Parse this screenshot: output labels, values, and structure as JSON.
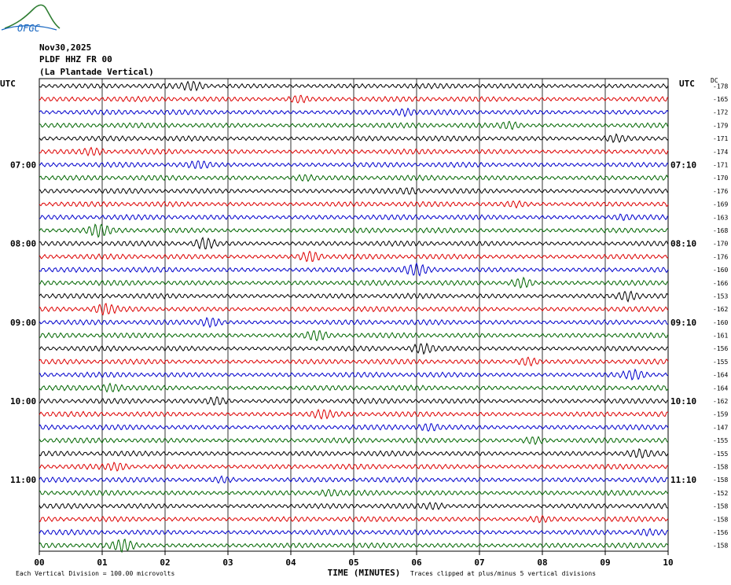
{
  "logo": {
    "text": "OFGC"
  },
  "header": {
    "date": "Nov30,2025",
    "channel": "PLDF HHZ FR 00",
    "station": "(La Plantade Vertical)"
  },
  "chart_data": {
    "type": "line",
    "left_axis_label": "UTC",
    "right_axis_label": "UTC",
    "right_col_label": "DC",
    "xlabel": "TIME (MINUTES)",
    "x_ticks": [
      "00",
      "01",
      "02",
      "03",
      "04",
      "05",
      "06",
      "07",
      "08",
      "09",
      "10"
    ],
    "xlim": [
      0,
      10
    ],
    "left_hour_labels": [
      {
        "row": 6,
        "label": "07:00"
      },
      {
        "row": 12,
        "label": "08:00"
      },
      {
        "row": 18,
        "label": "09:00"
      },
      {
        "row": 24,
        "label": "10:00"
      },
      {
        "row": 30,
        "label": "11:00"
      }
    ],
    "right_hour_labels": [
      {
        "row": 6,
        "label": "07:10"
      },
      {
        "row": 12,
        "label": "08:10"
      },
      {
        "row": 18,
        "label": "09:10"
      },
      {
        "row": 24,
        "label": "10:10"
      },
      {
        "row": 30,
        "label": "11:10"
      }
    ],
    "trace_colors": [
      "#000000",
      "#dd0000",
      "#0000cc",
      "#006600"
    ],
    "dc_offsets": [
      -178,
      -165,
      -172,
      -179,
      -171,
      -174,
      -171,
      -170,
      -176,
      -169,
      -163,
      -168,
      -170,
      -176,
      -160,
      -166,
      -153,
      -162,
      -160,
      -161,
      -156,
      -155,
      -164,
      -164,
      -162,
      -159,
      -147,
      -155,
      -155,
      -158,
      -158,
      -152,
      -158,
      -158,
      -156,
      -158
    ],
    "footer_left": "Each Vertical Division =  100.00 microvolts",
    "footer_right": "Traces clipped at plus/minus 5 vertical divisions"
  }
}
